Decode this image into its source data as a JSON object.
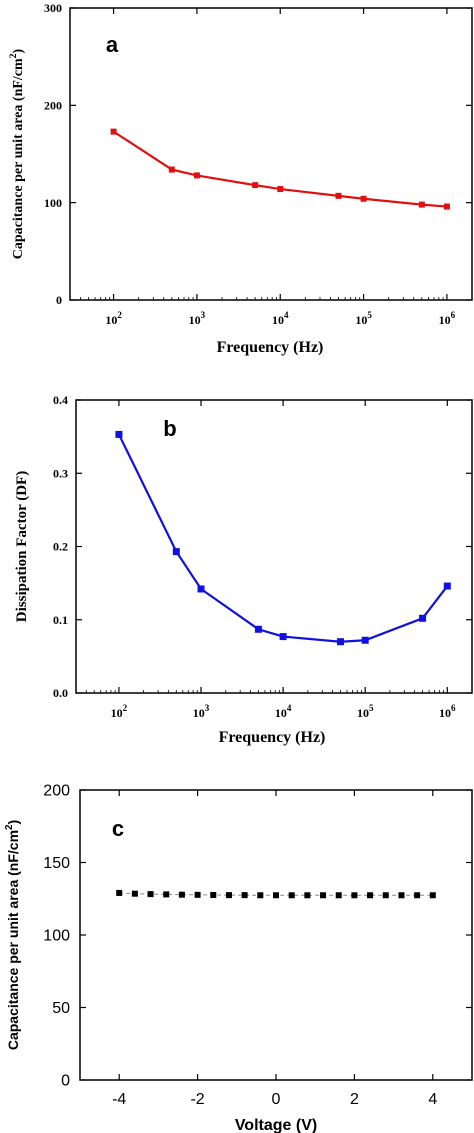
{
  "chart_data": [
    {
      "type": "line",
      "panel_label": "a",
      "xlabel": "Frequency (Hz)",
      "ylabel": "Capacitance per unit area (nF/cm",
      "ylabel_sup": "2",
      "ylabel_close": ")",
      "x_scale": "log",
      "xlim": [
        30,
        2000000
      ],
      "ylim": [
        0,
        300
      ],
      "y_ticks": [
        "0",
        "100",
        "200",
        "300"
      ],
      "x_ticks": [
        {
          "value": 100,
          "base": "10",
          "exp": "2"
        },
        {
          "value": 1000,
          "base": "10",
          "exp": "3"
        },
        {
          "value": 10000,
          "base": "10",
          "exp": "4"
        },
        {
          "value": 100000,
          "base": "10",
          "exp": "5"
        },
        {
          "value": 1000000,
          "base": "10",
          "exp": "6"
        }
      ],
      "grid": false,
      "color": "#e01010",
      "series": [
        {
          "x": [
            100,
            500,
            1000,
            5000,
            10000,
            50000,
            100000,
            500000,
            1000000
          ],
          "y": [
            173,
            134,
            128,
            118,
            114,
            107,
            104,
            98,
            96
          ]
        }
      ]
    },
    {
      "type": "line",
      "panel_label": "b",
      "xlabel": "Frequency (Hz)",
      "ylabel": "Dissipation Factor (DF)",
      "x_scale": "log",
      "xlim": [
        30,
        2000000
      ],
      "ylim": [
        0,
        0.4
      ],
      "y_ticks": [
        "0.0",
        "0.1",
        "0.2",
        "0.3",
        "0.4"
      ],
      "x_ticks": [
        {
          "value": 100,
          "base": "10",
          "exp": "2"
        },
        {
          "value": 1000,
          "base": "10",
          "exp": "3"
        },
        {
          "value": 10000,
          "base": "10",
          "exp": "4"
        },
        {
          "value": 100000,
          "base": "10",
          "exp": "5"
        },
        {
          "value": 1000000,
          "base": "10",
          "exp": "6"
        }
      ],
      "grid": false,
      "color": "#1010e0",
      "series": [
        {
          "x": [
            100,
            500,
            1000,
            5000,
            10000,
            50000,
            100000,
            500000,
            1000000
          ],
          "y": [
            0.353,
            0.193,
            0.142,
            0.087,
            0.077,
            0.07,
            0.072,
            0.102,
            0.146
          ]
        }
      ]
    },
    {
      "type": "scatter",
      "panel_label": "c",
      "xlabel": "Voltage (V)",
      "ylabel": "Capacitance per unit area (nF/cm",
      "ylabel_sup": "2",
      "ylabel_close": ")",
      "x_scale": "linear",
      "xlim": [
        -5,
        5
      ],
      "ylim": [
        0,
        200
      ],
      "y_ticks": [
        "0",
        "50",
        "100",
        "150",
        "200"
      ],
      "x_ticks": [
        {
          "value": -4,
          "label": "-4"
        },
        {
          "value": -2,
          "label": "-2"
        },
        {
          "value": 0,
          "label": "0"
        },
        {
          "value": 2,
          "label": "2"
        },
        {
          "value": 4,
          "label": "4"
        }
      ],
      "grid": false,
      "color": "#000000",
      "series": [
        {
          "x": [
            -4,
            -3.6,
            -3.2,
            -2.8,
            -2.4,
            -2,
            -1.6,
            -1.2,
            -0.8,
            -0.4,
            0,
            0.4,
            0.8,
            1.2,
            1.6,
            2,
            2.4,
            2.8,
            3.2,
            3.6,
            4
          ],
          "y": [
            129,
            128.5,
            128.2,
            128,
            127.8,
            127.7,
            127.6,
            127.5,
            127.5,
            127.4,
            127.4,
            127.4,
            127.4,
            127.4,
            127.4,
            127.4,
            127.4,
            127.4,
            127.4,
            127.4,
            127.4
          ]
        }
      ]
    }
  ]
}
